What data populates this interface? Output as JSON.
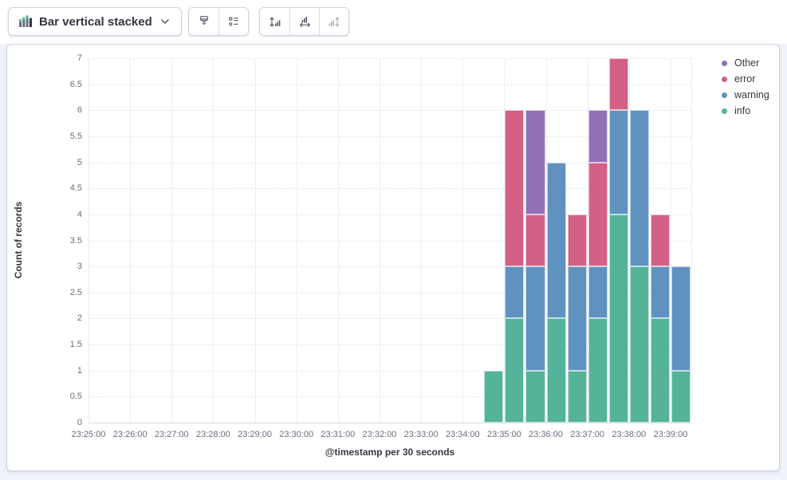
{
  "toolbar": {
    "chart_type_label": "Bar vertical stacked",
    "chart_type_icon": "bar-vertical-stacked-icon",
    "icons": [
      "visual-options-brush-icon",
      "legend-settings-icon",
      "left-axis-icon",
      "bottom-axis-icon",
      "right-axis-icon"
    ],
    "right_axis_disabled": true
  },
  "chart_data": {
    "type": "bar",
    "stacked": true,
    "orientation": "vertical",
    "title": "",
    "xlabel": "@timestamp per 30 seconds",
    "ylabel": "Count of records",
    "ylim": [
      0,
      7
    ],
    "ytick_step": 0.5,
    "grid": true,
    "legend_position": "right",
    "x_domain": [
      "23:25:00",
      "23:39:30"
    ],
    "bucket_seconds": 30,
    "x_ticks": [
      "23:25:00",
      "23:26:00",
      "23:27:00",
      "23:28:00",
      "23:29:00",
      "23:30:00",
      "23:31:00",
      "23:32:00",
      "23:33:00",
      "23:34:00",
      "23:35:00",
      "23:36:00",
      "23:37:00",
      "23:38:00",
      "23:39:00"
    ],
    "series": [
      {
        "name": "Other",
        "color": "#9170B8"
      },
      {
        "name": "error",
        "color": "#D36086"
      },
      {
        "name": "warning",
        "color": "#6092C0"
      },
      {
        "name": "info",
        "color": "#54B399"
      }
    ],
    "stack_order": [
      "info",
      "warning",
      "error",
      "Other"
    ],
    "bars": [
      {
        "time": "23:34:30",
        "values": {
          "info": 1
        }
      },
      {
        "time": "23:35:00",
        "values": {
          "info": 2,
          "warning": 1,
          "error": 3
        }
      },
      {
        "time": "23:35:30",
        "values": {
          "info": 1,
          "warning": 2,
          "error": 1,
          "Other": 2
        }
      },
      {
        "time": "23:36:00",
        "values": {
          "info": 2,
          "warning": 3
        }
      },
      {
        "time": "23:36:30",
        "values": {
          "info": 1,
          "warning": 2,
          "error": 1
        }
      },
      {
        "time": "23:37:00",
        "values": {
          "info": 2,
          "warning": 1,
          "error": 2,
          "Other": 1
        }
      },
      {
        "time": "23:37:30",
        "values": {
          "info": 4,
          "warning": 2,
          "error": 1
        }
      },
      {
        "time": "23:38:00",
        "values": {
          "info": 3,
          "warning": 3
        }
      },
      {
        "time": "23:38:30",
        "values": {
          "info": 2,
          "warning": 1,
          "error": 1
        }
      },
      {
        "time": "23:39:00",
        "values": {
          "info": 1,
          "warning": 2
        }
      }
    ]
  }
}
